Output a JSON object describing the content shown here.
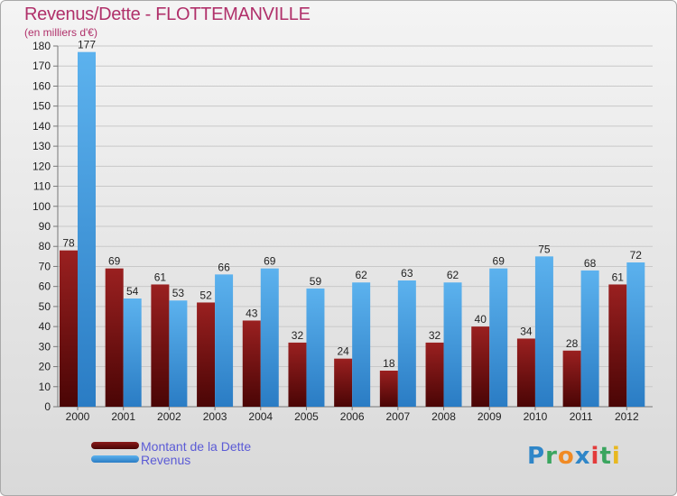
{
  "chart_data": {
    "type": "bar",
    "title": "Revenus/Dette - FLOTTEMANVILLE",
    "subtitle": "(en milliers d'€)",
    "categories": [
      "2000",
      "2001",
      "2002",
      "2003",
      "2004",
      "2005",
      "2006",
      "2007",
      "2008",
      "2009",
      "2010",
      "2011",
      "2012"
    ],
    "series": [
      {
        "name": "Montant de la Dette",
        "color": "#6b0a0a",
        "values": [
          78,
          69,
          61,
          52,
          43,
          32,
          24,
          18,
          32,
          40,
          34,
          28,
          61
        ]
      },
      {
        "name": "Revenus",
        "color": "#4aa3e6",
        "values": [
          177,
          54,
          53,
          66,
          69,
          59,
          62,
          63,
          62,
          69,
          75,
          68,
          72
        ]
      }
    ],
    "ylim": [
      0,
      180
    ],
    "yticks": [
      0,
      10,
      20,
      30,
      40,
      50,
      60,
      70,
      80,
      90,
      100,
      110,
      120,
      130,
      140,
      150,
      160,
      170,
      180
    ],
    "grid": true
  },
  "logo_text": "Proxiti"
}
